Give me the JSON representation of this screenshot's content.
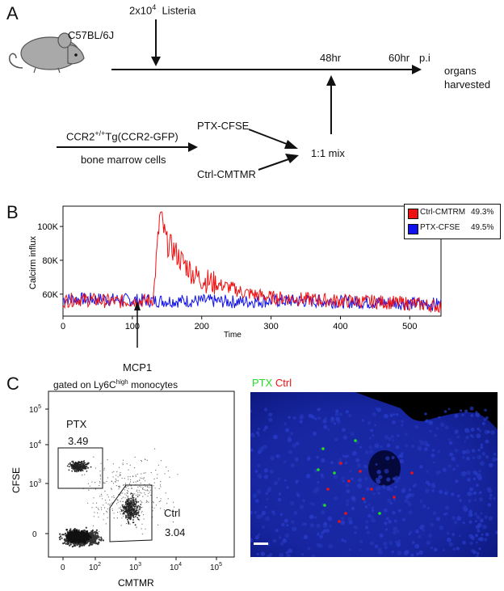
{
  "panels": {
    "a": {
      "letter": "A",
      "mouse_strain": "C57BL/6J",
      "infection_label": "2x10",
      "infection_exp": "4",
      "infection_organism": "Listeria",
      "timepoints": [
        "48hr",
        "60hr",
        "p.i"
      ],
      "harvest_line1": "organs",
      "harvest_line2": "harvested",
      "donor_prefix": "CCR2",
      "donor_sup": "+/+",
      "donor_suffix": "Tg(CCR2-GFP)",
      "donor_cells": "bone marrow cells",
      "label_ptx": "PTX-CFSE",
      "label_ctrl": "Ctrl-CMTMR",
      "mix_label": "1:1 mix"
    },
    "b": {
      "letter": "B",
      "stimulus_label": "MCP1"
    },
    "c": {
      "letter": "C",
      "gate_prefix": "gated on Ly6C",
      "gate_sup": "high",
      "gate_suffix": " monocytes",
      "ptx_gate_name": "PTX",
      "ptx_gate_value": "3.49",
      "ctrl_gate_name": "Ctrl",
      "ctrl_gate_value": "3.04",
      "xlabel": "CMTMR",
      "ylabel": "CFSE",
      "x_ticks": [
        "0",
        "10",
        "10",
        "10",
        "10"
      ],
      "x_tick_exps": [
        "",
        "2",
        "3",
        "4",
        "5"
      ],
      "y_ticks": [
        "0",
        "10",
        "10",
        "10"
      ],
      "y_tick_exps": [
        "",
        "3",
        "4",
        "5"
      ],
      "image_label_ptx": "PTX",
      "image_label_ctrl": "Ctrl",
      "colors": {
        "ptx": "#22dd22",
        "ctrl": "#ee1111"
      }
    }
  },
  "chart_data": {
    "type": "line",
    "xlabel": "Time",
    "ylabel": "Calcirm influx",
    "xlim": [
      0,
      545
    ],
    "ylim": [
      47000,
      112000
    ],
    "x_ticks": [
      0,
      100,
      200,
      300,
      400,
      500
    ],
    "y_tick_values": [
      60000,
      80000,
      100000
    ],
    "y_tick_labels": [
      "60K",
      "80K",
      "100K"
    ],
    "legend_position": "outside-right",
    "series": [
      {
        "name": "Ctrl-CMTRM",
        "percent": "49.3%",
        "color": "#ee1111",
        "x": [
          0,
          20,
          40,
          60,
          80,
          100,
          120,
          130,
          135,
          140,
          145,
          150,
          160,
          170,
          180,
          190,
          200,
          220,
          240,
          260,
          300,
          350,
          400,
          450,
          500,
          540
        ],
        "values": [
          56000,
          57000,
          56500,
          56000,
          55500,
          56000,
          56000,
          57000,
          82000,
          108000,
          98000,
          90000,
          86000,
          80000,
          76000,
          71000,
          69000,
          66000,
          64000,
          61000,
          58000,
          57000,
          56000,
          55500,
          54500,
          53000
        ]
      },
      {
        "name": "PTX-CFSE",
        "percent": "49.5%",
        "color": "#1111ee",
        "x": [
          0,
          50,
          100,
          150,
          200,
          250,
          300,
          350,
          400,
          450,
          500,
          540
        ],
        "values": [
          57000,
          57000,
          56500,
          56000,
          56000,
          55500,
          56000,
          56000,
          55500,
          55000,
          54500,
          54000
        ]
      }
    ]
  }
}
